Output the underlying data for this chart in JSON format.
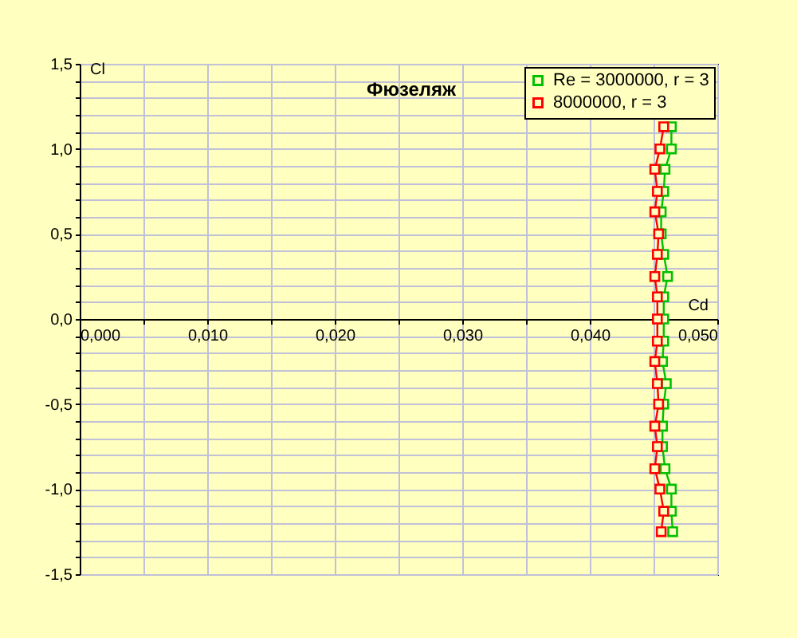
{
  "chart_data": {
    "type": "line",
    "title": "Фюзеляж",
    "xlabel": "Cd",
    "ylabel": "Cl",
    "xlim": [
      0,
      0.05
    ],
    "ylim": [
      -1.5,
      1.5
    ],
    "xticks": [
      {
        "value": 0,
        "label": "0,000"
      },
      {
        "value": 0.005,
        "label": null
      },
      {
        "value": 0.01,
        "label": "0,010"
      },
      {
        "value": 0.015,
        "label": null
      },
      {
        "value": 0.02,
        "label": "0,020"
      },
      {
        "value": 0.025,
        "label": null
      },
      {
        "value": 0.03,
        "label": "0,030"
      },
      {
        "value": 0.035,
        "label": null
      },
      {
        "value": 0.04,
        "label": "0,040"
      },
      {
        "value": 0.045,
        "label": null
      },
      {
        "value": 0.05,
        "label": "0,050"
      }
    ],
    "yticks": [
      {
        "value": -1.5,
        "label": "-1,5"
      },
      {
        "value": -1.4,
        "label": null
      },
      {
        "value": -1.3,
        "label": null
      },
      {
        "value": -1.2,
        "label": null
      },
      {
        "value": -1.1,
        "label": null
      },
      {
        "value": -1.0,
        "label": "-1,0"
      },
      {
        "value": -0.9,
        "label": null
      },
      {
        "value": -0.8,
        "label": null
      },
      {
        "value": -0.7,
        "label": null
      },
      {
        "value": -0.6,
        "label": null
      },
      {
        "value": -0.5,
        "label": "-0,5"
      },
      {
        "value": -0.4,
        "label": null
      },
      {
        "value": -0.3,
        "label": null
      },
      {
        "value": -0.2,
        "label": null
      },
      {
        "value": -0.1,
        "label": null
      },
      {
        "value": 0,
        "label": "0,0"
      },
      {
        "value": 0.1,
        "label": null
      },
      {
        "value": 0.2,
        "label": null
      },
      {
        "value": 0.3,
        "label": null
      },
      {
        "value": 0.4,
        "label": null
      },
      {
        "value": 0.5,
        "label": "0,5"
      },
      {
        "value": 0.6,
        "label": null
      },
      {
        "value": 0.7,
        "label": null
      },
      {
        "value": 0.8,
        "label": null
      },
      {
        "value": 0.9,
        "label": null
      },
      {
        "value": 1.0,
        "label": "1,0"
      },
      {
        "value": 1.1,
        "label": null
      },
      {
        "value": 1.2,
        "label": null
      },
      {
        "value": 1.3,
        "label": null
      },
      {
        "value": 1.4,
        "label": null
      },
      {
        "value": 1.5,
        "label": "1,5"
      }
    ],
    "grid": true,
    "legend": "top right",
    "marker": "square",
    "line_style": "solid",
    "series": [
      {
        "name": "Re = 3000000, r = 3",
        "color": "#00c000",
        "x": [
          0.0464,
          0.0464,
          0.0459,
          0.0458,
          0.0456,
          0.0456,
          0.0458,
          0.0461,
          0.0458,
          0.0458,
          0.0458,
          0.0457,
          0.046,
          0.0458,
          0.0457,
          0.0457,
          0.0459,
          0.0464,
          0.0464,
          0.0465
        ],
        "values": [
          1.13,
          1.0,
          0.88,
          0.75,
          0.63,
          0.5,
          0.38,
          0.25,
          0.13,
          0,
          -0.13,
          -0.25,
          -0.38,
          -0.5,
          -0.63,
          -0.75,
          -0.88,
          -1.0,
          -1.13,
          -1.25
        ]
      },
      {
        "name": "8000000, r = 3",
        "color": "#ff0000",
        "x": [
          0.0458,
          0.0455,
          0.0451,
          0.0453,
          0.0451,
          0.0454,
          0.0453,
          0.0451,
          0.0453,
          0.0453,
          0.0453,
          0.0451,
          0.0453,
          0.0454,
          0.0451,
          0.0453,
          0.0451,
          0.0455,
          0.0458,
          0.0456
        ],
        "values": [
          1.13,
          1.0,
          0.88,
          0.75,
          0.63,
          0.5,
          0.38,
          0.25,
          0.13,
          0,
          -0.13,
          -0.25,
          -0.38,
          -0.5,
          -0.63,
          -0.75,
          -0.88,
          -1.0,
          -1.13,
          -1.25
        ]
      }
    ]
  }
}
